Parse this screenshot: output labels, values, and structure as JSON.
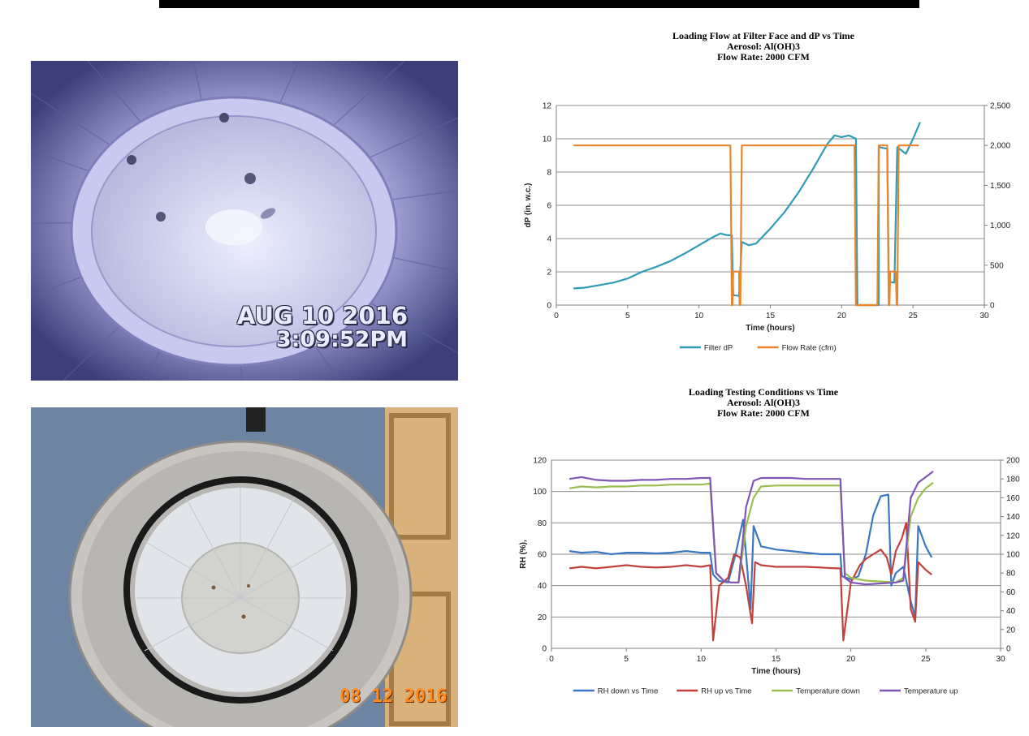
{
  "photos": [
    {
      "kind": "filter-interior-camera",
      "stamp_date": "AUG 10 2016",
      "stamp_time": "3:09:52PM"
    },
    {
      "kind": "filter-top-view",
      "stamp_date": "08 12 2016"
    }
  ],
  "chart_data": [
    {
      "type": "line",
      "title": [
        "Loading Flow at Filter Face and dP vs Time",
        "Aerosol: Al(OH)3",
        "Flow Rate: 2000 CFM"
      ],
      "xlabel": "Time (hours)",
      "ylabel": "dP (in. w.c.)",
      "y2label": "",
      "xlim": [
        0,
        30
      ],
      "ylim": [
        0,
        12
      ],
      "y2lim": [
        0,
        2500
      ],
      "xticks": [
        "0",
        "5",
        "10",
        "15",
        "20",
        "25",
        "30"
      ],
      "yticks": [
        "0",
        "2",
        "4",
        "6",
        "8",
        "10",
        "12"
      ],
      "y2ticks": [
        "0",
        "500",
        "1,000",
        "1,500",
        "2,000",
        "2,500"
      ],
      "grid": true,
      "legend": "bottom",
      "series": [
        {
          "name": "Filter dP",
          "axis": "left",
          "color": "#2f9bb5",
          "points": [
            [
              1.2,
              1.0
            ],
            [
              2,
              1.05
            ],
            [
              3,
              1.2
            ],
            [
              4,
              1.35
            ],
            [
              5,
              1.6
            ],
            [
              6,
              2.0
            ],
            [
              7,
              2.3
            ],
            [
              8,
              2.65
            ],
            [
              9,
              3.1
            ],
            [
              10,
              3.6
            ],
            [
              11,
              4.1
            ],
            [
              11.5,
              4.3
            ],
            [
              12,
              4.2
            ],
            [
              12.3,
              4.2
            ],
            [
              12.4,
              0.6
            ],
            [
              12.8,
              0.55
            ],
            [
              13,
              3.8
            ],
            [
              13.5,
              3.6
            ],
            [
              14,
              3.7
            ],
            [
              15,
              4.6
            ],
            [
              16,
              5.6
            ],
            [
              17,
              6.8
            ],
            [
              18,
              8.2
            ],
            [
              19,
              9.7
            ],
            [
              19.5,
              10.2
            ],
            [
              20,
              10.1
            ],
            [
              20.5,
              10.2
            ],
            [
              21,
              10.0
            ],
            [
              21.1,
              0
            ],
            [
              22.6,
              0
            ],
            [
              22.6,
              9.5
            ],
            [
              23.2,
              9.4
            ],
            [
              23.3,
              1.4
            ],
            [
              23.7,
              1.35
            ],
            [
              23.9,
              9.5
            ],
            [
              24.5,
              9.1
            ],
            [
              25,
              10.0
            ],
            [
              25.5,
              11.0
            ]
          ]
        },
        {
          "name": "Flow Rate (cfm)",
          "axis": "right",
          "color": "#e8852e",
          "points": [
            [
              1.2,
              2000
            ],
            [
              12.2,
              2000
            ],
            [
              12.3,
              0
            ],
            [
              12.35,
              0
            ],
            [
              12.4,
              420
            ],
            [
              12.8,
              420
            ],
            [
              12.85,
              0
            ],
            [
              12.9,
              0
            ],
            [
              13,
              2000
            ],
            [
              20.9,
              2000
            ],
            [
              21.0,
              0
            ],
            [
              22.5,
              0
            ],
            [
              22.6,
              2000
            ],
            [
              23.2,
              2000
            ],
            [
              23.3,
              0
            ],
            [
              23.35,
              0
            ],
            [
              23.4,
              420
            ],
            [
              23.8,
              420
            ],
            [
              23.85,
              0
            ],
            [
              23.9,
              0
            ],
            [
              24.0,
              2000
            ],
            [
              25.4,
              2000
            ]
          ]
        }
      ]
    },
    {
      "type": "line",
      "title": [
        "Loading Testing Conditions vs Time",
        "Aerosol: Al(OH)3",
        "Flow Rate: 2000 CFM"
      ],
      "xlabel": "Time (hours)",
      "ylabel": "RH (%),",
      "y2label": "",
      "xlim": [
        0,
        30
      ],
      "ylim": [
        0,
        120
      ],
      "y2lim": [
        0,
        200
      ],
      "xticks": [
        "0",
        "5",
        "10",
        "15",
        "20",
        "25",
        "30"
      ],
      "yticks": [
        "0",
        "20",
        "40",
        "60",
        "80",
        "100",
        "120"
      ],
      "y2ticks": [
        "0",
        "20",
        "40",
        "60",
        "80",
        "100",
        "120",
        "140",
        "160",
        "180",
        "200"
      ],
      "grid": true,
      "legend": "bottom",
      "series": [
        {
          "name": "RH down vs Time",
          "axis": "left",
          "color": "#3a78c3",
          "points": [
            [
              1.2,
              62
            ],
            [
              2,
              61
            ],
            [
              3,
              61.5
            ],
            [
              4,
              60
            ],
            [
              5,
              61
            ],
            [
              6,
              61
            ],
            [
              7,
              60.5
            ],
            [
              8,
              61
            ],
            [
              9,
              62
            ],
            [
              10,
              61
            ],
            [
              10.6,
              61
            ],
            [
              10.8,
              47
            ],
            [
              11.2,
              43
            ],
            [
              11.8,
              42
            ],
            [
              12.3,
              60
            ],
            [
              12.8,
              82
            ],
            [
              13.0,
              60
            ],
            [
              13.3,
              25
            ],
            [
              13.5,
              78
            ],
            [
              14,
              65
            ],
            [
              15,
              63
            ],
            [
              16,
              62
            ],
            [
              17,
              61
            ],
            [
              18,
              60
            ],
            [
              19,
              60
            ],
            [
              19.3,
              60
            ],
            [
              19.4,
              46
            ],
            [
              20,
              44
            ],
            [
              20.5,
              46
            ],
            [
              21,
              60
            ],
            [
              21.5,
              85
            ],
            [
              22,
              97
            ],
            [
              22.5,
              98
            ],
            [
              22.7,
              40
            ],
            [
              23,
              48
            ],
            [
              23.5,
              52
            ],
            [
              24,
              30
            ],
            [
              24.3,
              20
            ],
            [
              24.5,
              78
            ],
            [
              25,
              65
            ],
            [
              25.4,
              58
            ]
          ]
        },
        {
          "name": "RH up vs Time",
          "axis": "left",
          "color": "#c0423b",
          "points": [
            [
              1.2,
              51
            ],
            [
              2,
              52
            ],
            [
              3,
              51
            ],
            [
              4,
              52
            ],
            [
              5,
              53
            ],
            [
              6,
              52
            ],
            [
              7,
              51.5
            ],
            [
              8,
              52
            ],
            [
              9,
              53
            ],
            [
              10,
              52
            ],
            [
              10.6,
              53
            ],
            [
              10.8,
              5
            ],
            [
              11.2,
              40
            ],
            [
              11.8,
              45
            ],
            [
              12.2,
              60
            ],
            [
              12.6,
              58
            ],
            [
              13.0,
              40
            ],
            [
              13.4,
              16
            ],
            [
              13.6,
              55
            ],
            [
              14,
              53
            ],
            [
              15,
              52
            ],
            [
              16,
              52
            ],
            [
              17,
              52
            ],
            [
              18,
              51.5
            ],
            [
              19,
              51
            ],
            [
              19.3,
              51
            ],
            [
              19.5,
              5
            ],
            [
              20,
              42
            ],
            [
              20.6,
              53
            ],
            [
              21,
              57
            ],
            [
              21.5,
              60
            ],
            [
              22,
              63
            ],
            [
              22.4,
              58
            ],
            [
              22.7,
              47
            ],
            [
              23,
              62
            ],
            [
              23.4,
              70
            ],
            [
              23.7,
              80
            ],
            [
              24,
              25
            ],
            [
              24.3,
              17
            ],
            [
              24.5,
              55
            ],
            [
              25,
              50
            ],
            [
              25.4,
              47
            ]
          ]
        },
        {
          "name": "Temperature down",
          "axis": "right",
          "color": "#9bbd4e",
          "points": [
            [
              1.2,
              170
            ],
            [
              2,
              172
            ],
            [
              3,
              171
            ],
            [
              4,
              172
            ],
            [
              5,
              172
            ],
            [
              6,
              173
            ],
            [
              7,
              173
            ],
            [
              8,
              174
            ],
            [
              9,
              174
            ],
            [
              10,
              174
            ],
            [
              10.6,
              175
            ],
            [
              11,
              80
            ],
            [
              11.5,
              72
            ],
            [
              12,
              70
            ],
            [
              12.5,
              70
            ],
            [
              13,
              130
            ],
            [
              13.5,
              160
            ],
            [
              14,
              172
            ],
            [
              15,
              173
            ],
            [
              16,
              173
            ],
            [
              17,
              173
            ],
            [
              18,
              173
            ],
            [
              19,
              173
            ],
            [
              19.3,
              173
            ],
            [
              19.6,
              80
            ],
            [
              20,
              75
            ],
            [
              21,
              72
            ],
            [
              22,
              71
            ],
            [
              23,
              70
            ],
            [
              23.5,
              75
            ],
            [
              24,
              140
            ],
            [
              24.5,
              160
            ],
            [
              25,
              170
            ],
            [
              25.5,
              176
            ]
          ]
        },
        {
          "name": "Temperature up",
          "axis": "right",
          "color": "#8055b5",
          "points": [
            [
              1.2,
              180
            ],
            [
              2,
              182
            ],
            [
              3,
              179
            ],
            [
              4,
              178
            ],
            [
              5,
              178
            ],
            [
              6,
              179
            ],
            [
              7,
              179
            ],
            [
              8,
              180
            ],
            [
              9,
              180
            ],
            [
              10,
              181
            ],
            [
              10.6,
              181
            ],
            [
              11,
              80
            ],
            [
              11.5,
              72
            ],
            [
              12,
              70
            ],
            [
              12.5,
              70
            ],
            [
              13,
              150
            ],
            [
              13.5,
              178
            ],
            [
              14,
              181
            ],
            [
              15,
              181
            ],
            [
              16,
              181
            ],
            [
              17,
              180
            ],
            [
              18,
              180
            ],
            [
              19,
              180
            ],
            [
              19.3,
              180
            ],
            [
              19.6,
              75
            ],
            [
              20,
              70
            ],
            [
              21,
              68
            ],
            [
              22,
              69
            ],
            [
              23,
              70
            ],
            [
              23.5,
              72
            ],
            [
              24,
              160
            ],
            [
              24.5,
              176
            ],
            [
              25,
              182
            ],
            [
              25.5,
              188
            ]
          ]
        }
      ]
    }
  ]
}
